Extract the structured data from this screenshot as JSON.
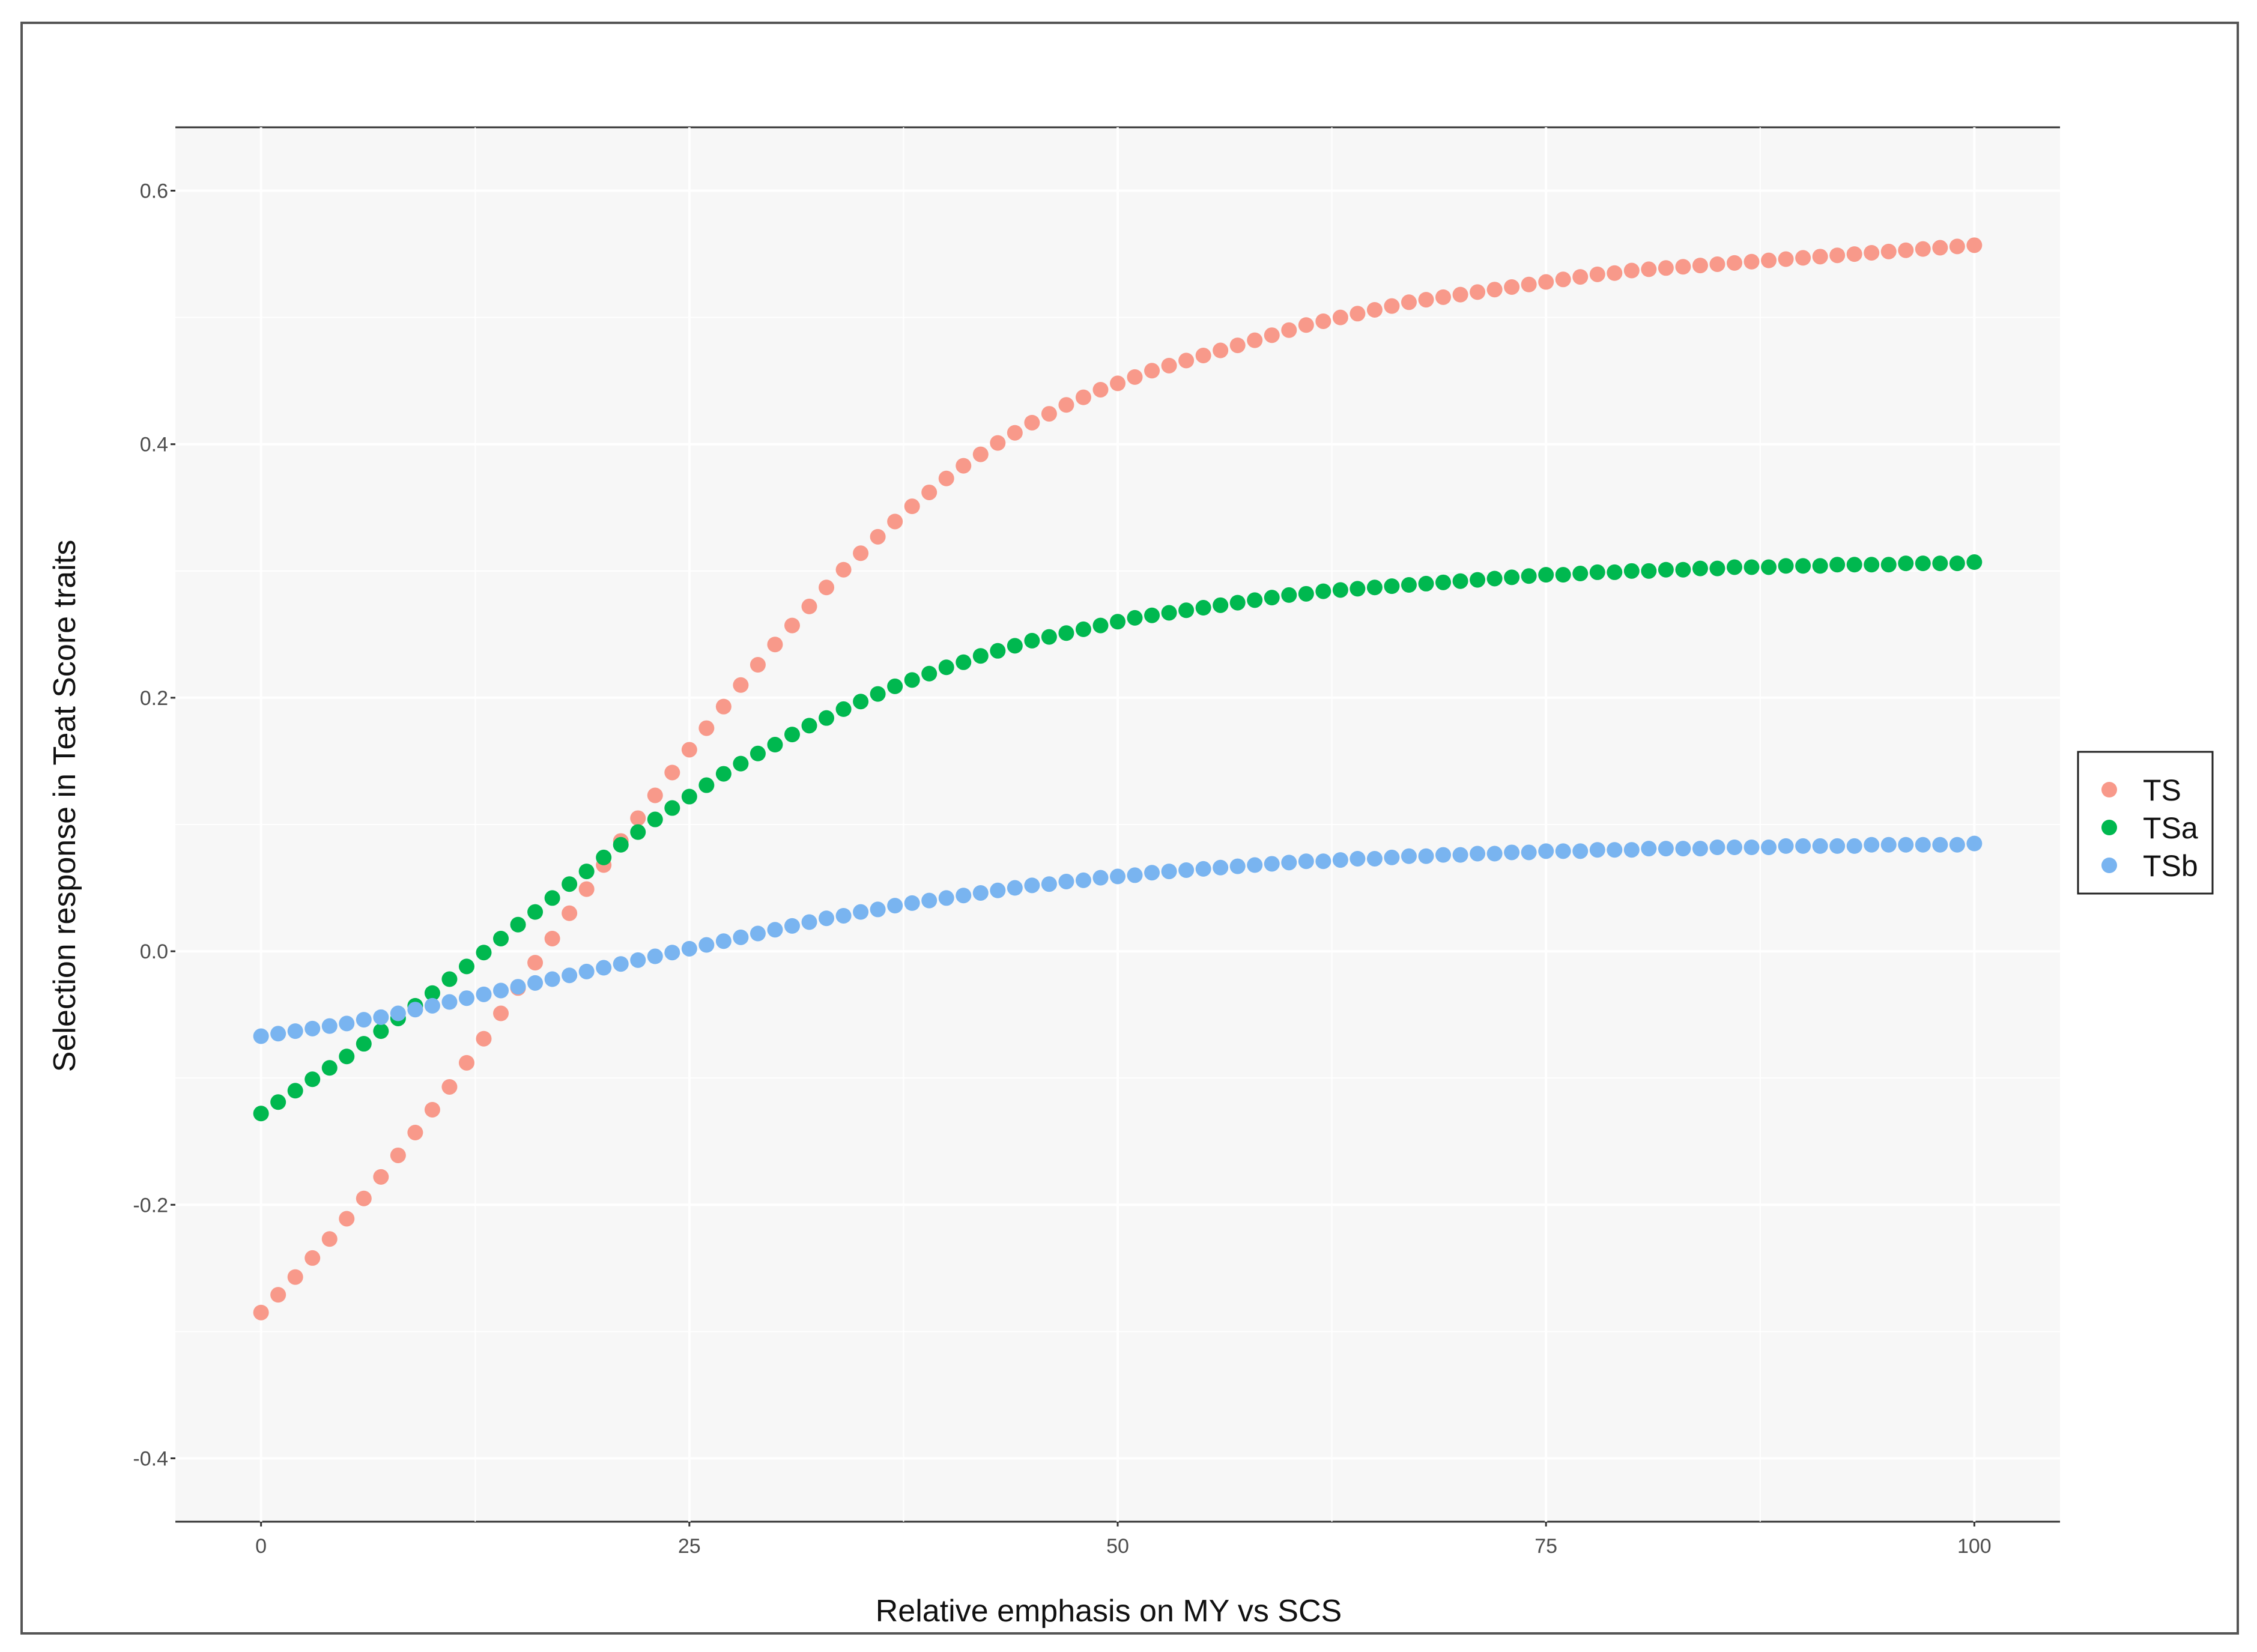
{
  "chart_data": {
    "type": "scatter",
    "title": "",
    "xlabel": "Relative emphasis on MY vs SCS",
    "ylabel": "Selection response in Teat Score traits",
    "xlim": [
      -5,
      105
    ],
    "ylim": [
      -0.45,
      0.65
    ],
    "x_ticks": [
      0,
      25,
      50,
      75,
      100
    ],
    "x_tick_labels": [
      "0",
      "25",
      "50",
      "75",
      "100"
    ],
    "y_ticks": [
      -0.4,
      -0.2,
      0.0,
      0.2,
      0.4,
      0.6
    ],
    "y_tick_labels": [
      "-0.4",
      "-0.2",
      "0.0",
      "0.2",
      "0.4",
      "0.6"
    ],
    "grid": true,
    "legend_position": "right",
    "background_color": "#f7f7f7",
    "grid_color": "#ffffff",
    "x_start": 0,
    "x_step": 1,
    "series": [
      {
        "name": "TS",
        "color": "#f8998a",
        "values": [
          -0.285,
          -0.271,
          -0.257,
          -0.242,
          -0.227,
          -0.211,
          -0.195,
          -0.178,
          -0.161,
          -0.143,
          -0.125,
          -0.107,
          -0.088,
          -0.069,
          -0.049,
          -0.029,
          -0.009,
          0.01,
          0.03,
          0.049,
          0.068,
          0.087,
          0.105,
          0.123,
          0.141,
          0.159,
          0.176,
          0.193,
          0.21,
          0.226,
          0.242,
          0.257,
          0.272,
          0.287,
          0.301,
          0.314,
          0.327,
          0.339,
          0.351,
          0.362,
          0.373,
          0.383,
          0.392,
          0.401,
          0.409,
          0.417,
          0.424,
          0.431,
          0.437,
          0.443,
          0.448,
          0.453,
          0.458,
          0.462,
          0.466,
          0.47,
          0.474,
          0.478,
          0.482,
          0.486,
          0.49,
          0.494,
          0.497,
          0.5,
          0.503,
          0.506,
          0.509,
          0.512,
          0.514,
          0.516,
          0.518,
          0.52,
          0.522,
          0.524,
          0.526,
          0.528,
          0.53,
          0.532,
          0.534,
          0.535,
          0.537,
          0.538,
          0.539,
          0.54,
          0.541,
          0.542,
          0.543,
          0.544,
          0.545,
          0.546,
          0.547,
          0.548,
          0.549,
          0.55,
          0.551,
          0.552,
          0.553,
          0.554,
          0.555,
          0.556,
          0.557
        ]
      },
      {
        "name": "TSa",
        "color": "#00b84f",
        "values": [
          -0.128,
          -0.119,
          -0.11,
          -0.101,
          -0.092,
          -0.083,
          -0.073,
          -0.063,
          -0.053,
          -0.043,
          -0.033,
          -0.022,
          -0.012,
          -0.001,
          0.01,
          0.021,
          0.031,
          0.042,
          0.053,
          0.063,
          0.074,
          0.084,
          0.094,
          0.104,
          0.113,
          0.122,
          0.131,
          0.14,
          0.148,
          0.156,
          0.163,
          0.171,
          0.178,
          0.184,
          0.191,
          0.197,
          0.203,
          0.209,
          0.214,
          0.219,
          0.224,
          0.228,
          0.233,
          0.237,
          0.241,
          0.245,
          0.248,
          0.251,
          0.254,
          0.257,
          0.26,
          0.263,
          0.265,
          0.267,
          0.269,
          0.271,
          0.273,
          0.275,
          0.277,
          0.279,
          0.281,
          0.282,
          0.284,
          0.285,
          0.286,
          0.287,
          0.288,
          0.289,
          0.29,
          0.291,
          0.292,
          0.293,
          0.294,
          0.295,
          0.296,
          0.297,
          0.297,
          0.298,
          0.299,
          0.299,
          0.3,
          0.3,
          0.301,
          0.301,
          0.302,
          0.302,
          0.303,
          0.303,
          0.303,
          0.304,
          0.304,
          0.304,
          0.305,
          0.305,
          0.305,
          0.305,
          0.306,
          0.306,
          0.306,
          0.306,
          0.307
        ]
      },
      {
        "name": "TSb",
        "color": "#79b4f0",
        "values": [
          -0.067,
          -0.065,
          -0.063,
          -0.061,
          -0.059,
          -0.057,
          -0.054,
          -0.052,
          -0.049,
          -0.046,
          -0.043,
          -0.04,
          -0.037,
          -0.034,
          -0.031,
          -0.028,
          -0.025,
          -0.022,
          -0.019,
          -0.016,
          -0.013,
          -0.01,
          -0.007,
          -0.004,
          -0.001,
          0.002,
          0.005,
          0.008,
          0.011,
          0.014,
          0.017,
          0.02,
          0.023,
          0.026,
          0.028,
          0.031,
          0.033,
          0.036,
          0.038,
          0.04,
          0.042,
          0.044,
          0.046,
          0.048,
          0.05,
          0.052,
          0.053,
          0.055,
          0.056,
          0.058,
          0.059,
          0.06,
          0.062,
          0.063,
          0.064,
          0.065,
          0.066,
          0.067,
          0.068,
          0.069,
          0.07,
          0.071,
          0.071,
          0.072,
          0.073,
          0.073,
          0.074,
          0.075,
          0.075,
          0.076,
          0.076,
          0.077,
          0.077,
          0.078,
          0.078,
          0.079,
          0.079,
          0.079,
          0.08,
          0.08,
          0.08,
          0.081,
          0.081,
          0.081,
          0.081,
          0.082,
          0.082,
          0.082,
          0.082,
          0.083,
          0.083,
          0.083,
          0.083,
          0.083,
          0.084,
          0.084,
          0.084,
          0.084,
          0.084,
          0.084,
          0.085
        ]
      }
    ]
  }
}
